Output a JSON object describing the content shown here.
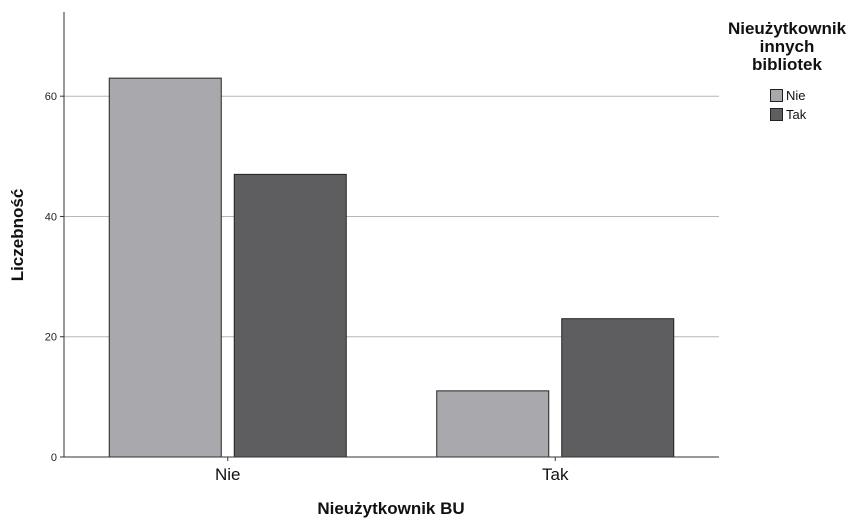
{
  "chart_data": {
    "type": "bar",
    "categories": [
      "Nie",
      "Tak"
    ],
    "series": [
      {
        "name": "Nie",
        "values": [
          63,
          11
        ],
        "color": "#a9a9ad"
      },
      {
        "name": "Tak",
        "values": [
          47,
          23
        ],
        "color": "#5e5e60"
      }
    ],
    "xlabel": "Nieużytkownik BU",
    "ylabel": "Liczebność",
    "ylim": [
      0,
      74
    ],
    "yticks": [
      0,
      20,
      40,
      60
    ],
    "grid": true,
    "legend": {
      "title": "Nieużytkownik innych bibliotek",
      "title_lines": [
        "Nieużytkownik",
        "innych",
        "bibliotek"
      ],
      "placement": "top-right"
    }
  }
}
